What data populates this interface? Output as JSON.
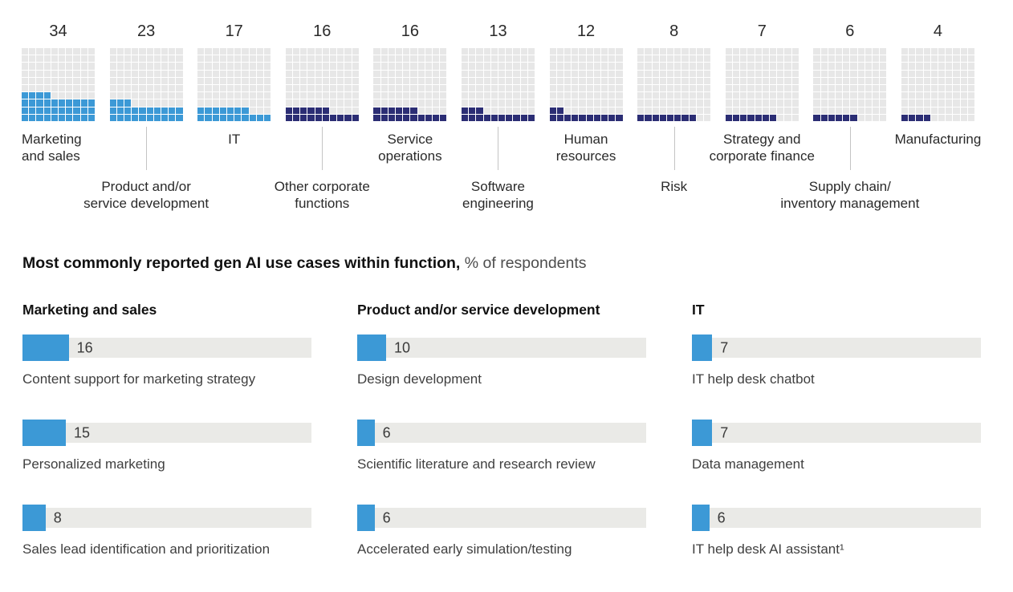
{
  "colors": {
    "light_blue": "#3C99D6",
    "navy": "#2B2D74",
    "waffle_empty": "#E7E7E7",
    "bar_track": "#EAEAE7",
    "connector_line": "#C4C4C4"
  },
  "functions_chart": {
    "unit": "each square = 1% of respondents",
    "items": [
      {
        "value": "34",
        "label_lines": [
          "Marketing",
          "and sales"
        ],
        "label_row": 1,
        "align": "left",
        "palette": "light_blue"
      },
      {
        "value": "23",
        "label_lines": [
          "Product and/or",
          "service development"
        ],
        "label_row": 2,
        "align": "center",
        "palette": "light_blue"
      },
      {
        "value": "17",
        "label_lines": [
          "IT"
        ],
        "label_row": 1,
        "align": "center",
        "palette": "light_blue"
      },
      {
        "value": "16",
        "label_lines": [
          "Other corporate",
          "functions"
        ],
        "label_row": 2,
        "align": "center",
        "palette": "navy"
      },
      {
        "value": "16",
        "label_lines": [
          "Service",
          "operations"
        ],
        "label_row": 1,
        "align": "center",
        "palette": "navy"
      },
      {
        "value": "13",
        "label_lines": [
          "Software",
          "engineering"
        ],
        "label_row": 2,
        "align": "center",
        "palette": "navy"
      },
      {
        "value": "12",
        "label_lines": [
          "Human",
          "resources"
        ],
        "label_row": 1,
        "align": "center",
        "palette": "navy"
      },
      {
        "value": "8",
        "label_lines": [
          "Risk"
        ],
        "label_row": 2,
        "align": "center",
        "palette": "navy"
      },
      {
        "value": "7",
        "label_lines": [
          "Strategy and",
          "corporate finance"
        ],
        "label_row": 1,
        "align": "center",
        "palette": "navy"
      },
      {
        "value": "6",
        "label_lines": [
          "Supply chain/",
          "inventory management"
        ],
        "label_row": 2,
        "align": "center",
        "palette": "navy"
      },
      {
        "value": "4",
        "label_lines": [
          "Manufacturing"
        ],
        "label_row": 1,
        "align": "center",
        "palette": "navy"
      }
    ]
  },
  "use_cases": {
    "title_bold": "Most commonly reported gen AI use cases within function,",
    "title_rest": " % of respondents",
    "columns": [
      {
        "header": "Marketing and sales",
        "bars": [
          {
            "value": 16,
            "label": "Content support for marketing strategy"
          },
          {
            "value": 15,
            "label": "Personalized marketing"
          },
          {
            "value": 8,
            "label": "Sales lead identification and prioritization"
          }
        ]
      },
      {
        "header": "Product and/or service development",
        "bars": [
          {
            "value": 10,
            "label": "Design development"
          },
          {
            "value": 6,
            "label": "Scientific literature and research review"
          },
          {
            "value": 6,
            "label": "Accelerated early simulation/testing"
          }
        ]
      },
      {
        "header": "IT",
        "bars": [
          {
            "value": 7,
            "label": "IT help desk chatbot"
          },
          {
            "value": 7,
            "label": "Data management"
          },
          {
            "value": 6,
            "label": "IT help desk AI assistant¹"
          }
        ]
      }
    ]
  },
  "chart_data": [
    {
      "type": "bar",
      "variant": "waffle, 10x10 unit grid per category, filled bottom-up, 1 square = 1%",
      "title": "",
      "categories": [
        "Marketing and sales",
        "Product and/or service development",
        "IT",
        "Other corporate functions",
        "Service operations",
        "Software engineering",
        "Human resources",
        "Risk",
        "Strategy and corporate finance",
        "Supply chain/inventory management",
        "Manufacturing"
      ],
      "values": [
        34,
        23,
        17,
        16,
        16,
        13,
        12,
        8,
        7,
        6,
        4
      ],
      "series_colors": [
        "#3C99D6",
        "#3C99D6",
        "#3C99D6",
        "#2B2D74",
        "#2B2D74",
        "#2B2D74",
        "#2B2D74",
        "#2B2D74",
        "#2B2D74",
        "#2B2D74",
        "#2B2D74"
      ],
      "ylim": [
        0,
        100
      ],
      "grid": false,
      "legend": false
    },
    {
      "type": "bar",
      "orientation": "horizontal",
      "title": "Most commonly reported gen AI use cases within function, % of respondents",
      "xlim": [
        0,
        100
      ],
      "grid": false,
      "legend": false,
      "series": [
        {
          "name": "Marketing and sales",
          "categories": [
            "Content support for marketing strategy",
            "Personalized marketing",
            "Sales lead identification and prioritization"
          ],
          "values": [
            16,
            15,
            8
          ]
        },
        {
          "name": "Product and/or service development",
          "categories": [
            "Design development",
            "Scientific literature and research review",
            "Accelerated early simulation/testing"
          ],
          "values": [
            10,
            6,
            6
          ]
        },
        {
          "name": "IT",
          "categories": [
            "IT help desk chatbot",
            "Data management",
            "IT help desk AI assistant¹"
          ],
          "values": [
            7,
            7,
            6
          ]
        }
      ]
    }
  ]
}
